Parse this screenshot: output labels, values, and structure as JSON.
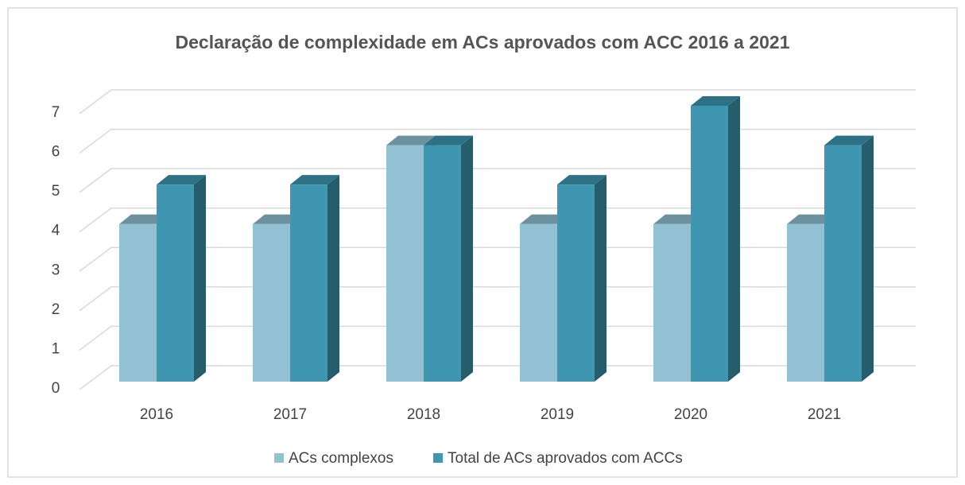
{
  "chart_data": {
    "type": "bar3d",
    "title": "Declaração de complexidade em ACs aprovados com ACC  2016 a 2021",
    "categories": [
      "2016",
      "2017",
      "2018",
      "2019",
      "2020",
      "2021"
    ],
    "series": [
      {
        "name": "ACs complexos",
        "color": "#92c1d4",
        "values": [
          4,
          4,
          6,
          4,
          4,
          4
        ]
      },
      {
        "name": "Total de ACs aprovados com ACCs",
        "color": "#3e96b0",
        "values": [
          5,
          5,
          6,
          5,
          7,
          6
        ]
      }
    ],
    "ylim": [
      0,
      7
    ],
    "yticks": [
      0,
      1,
      2,
      3,
      4,
      5,
      6,
      7
    ],
    "grid": true,
    "legend": "bottom"
  }
}
